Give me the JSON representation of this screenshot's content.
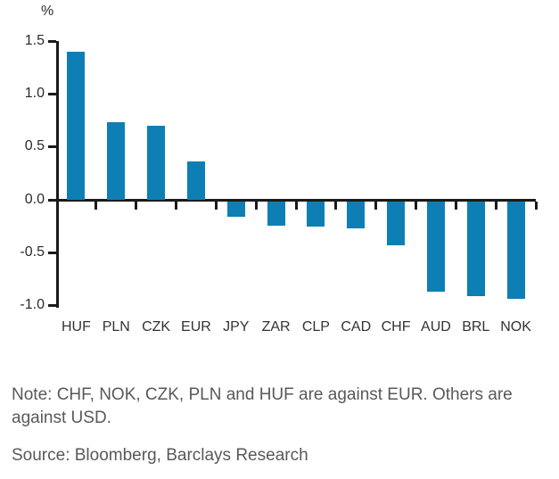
{
  "chart_data": {
    "type": "bar",
    "title": "",
    "unit_label": "%",
    "categories": [
      "HUF",
      "PLN",
      "CZK",
      "EUR",
      "JPY",
      "ZAR",
      "CLP",
      "CAD",
      "CHF",
      "AUD",
      "BRL",
      "NOK"
    ],
    "values": [
      1.4,
      0.73,
      0.7,
      0.36,
      -0.15,
      -0.23,
      -0.24,
      -0.26,
      -0.42,
      -0.86,
      -0.9,
      -0.92
    ],
    "ylim": [
      -1.0,
      1.5
    ],
    "yticks": [
      1.5,
      1.0,
      0.5,
      0.0,
      -0.5,
      -1.0
    ],
    "grid": false,
    "legend": "none",
    "bar_color": "#0d7fb4",
    "axis_color": "#1a1a1a"
  },
  "note": "Note: CHF, NOK, CZK, PLN and HUF are against EUR. Others are against USD.",
  "source": "Source: Bloomberg, Barclays Research",
  "colors": {
    "bar": "#0d7fb4",
    "axis": "#1a1a1a",
    "tick_label": "#2b2b2b",
    "category_label": "#333333",
    "body_text": "#595959",
    "background": "#ffffff"
  }
}
